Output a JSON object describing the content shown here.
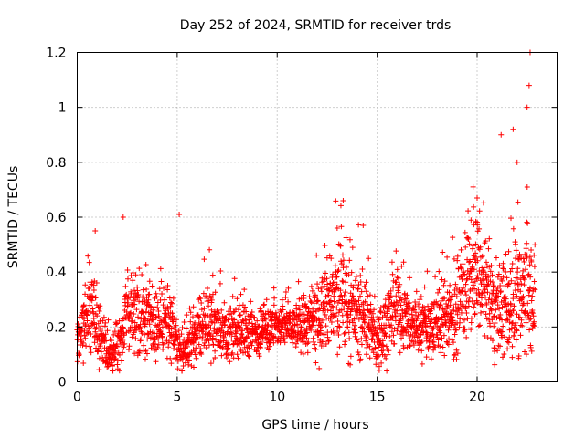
{
  "chart_data": {
    "type": "scatter",
    "title": "Day 252 of 2024, SRMTID for receiver trds",
    "xlabel": "GPS time / hours",
    "ylabel": "SRMTID / TECUs",
    "xlim": [
      0,
      24
    ],
    "ylim": [
      0,
      1.2
    ],
    "xticks": [
      0,
      5,
      10,
      15,
      20
    ],
    "xtick_labels": [
      "0",
      "5",
      "10",
      "15",
      "20"
    ],
    "yticks": [
      0,
      0.2,
      0.4,
      0.6,
      0.8,
      1,
      1.2
    ],
    "ytick_labels": [
      "0",
      "0.2",
      "0.4",
      "0.6",
      "0.8",
      "1",
      "1.2"
    ],
    "grid": true,
    "marker": "+",
    "series": [
      {
        "name": "SRMTID",
        "color": "#ff0000",
        "profile": {
          "hour": [
            0,
            0.3,
            0.6,
            0.9,
            1.2,
            1.5,
            2.0,
            2.5,
            3.0,
            3.5,
            4.0,
            4.5,
            5.0,
            5.3,
            6.0,
            6.5,
            7.0,
            8.0,
            9.0,
            10.0,
            11.0,
            12.0,
            12.5,
            13.0,
            13.5,
            14.0,
            14.5,
            15.0,
            15.5,
            16.0,
            17.0,
            17.8,
            18.5,
            19.0,
            19.5,
            20.0,
            20.5,
            21.0,
            21.5,
            22.0,
            22.5,
            22.9
          ],
          "median": [
            0.14,
            0.2,
            0.28,
            0.24,
            0.15,
            0.11,
            0.12,
            0.25,
            0.22,
            0.25,
            0.2,
            0.22,
            0.12,
            0.1,
            0.18,
            0.22,
            0.2,
            0.18,
            0.18,
            0.2,
            0.2,
            0.22,
            0.28,
            0.3,
            0.27,
            0.25,
            0.22,
            0.15,
            0.22,
            0.26,
            0.2,
            0.2,
            0.25,
            0.25,
            0.35,
            0.4,
            0.3,
            0.25,
            0.28,
            0.3,
            0.35,
            0.3
          ],
          "spread": [
            0.06,
            0.1,
            0.12,
            0.12,
            0.06,
            0.05,
            0.06,
            0.12,
            0.1,
            0.12,
            0.1,
            0.1,
            0.06,
            0.05,
            0.08,
            0.1,
            0.08,
            0.08,
            0.07,
            0.06,
            0.06,
            0.1,
            0.12,
            0.14,
            0.12,
            0.12,
            0.1,
            0.08,
            0.1,
            0.1,
            0.08,
            0.08,
            0.1,
            0.12,
            0.15,
            0.15,
            0.14,
            0.12,
            0.14,
            0.16,
            0.18,
            0.14
          ]
        },
        "peaks": [
          [
            0.9,
            0.55
          ],
          [
            2.3,
            0.6
          ],
          [
            5.1,
            0.61
          ],
          [
            13.0,
            0.56
          ],
          [
            13.3,
            0.66
          ],
          [
            14.3,
            0.57
          ],
          [
            19.8,
            0.71
          ],
          [
            20.0,
            0.67
          ],
          [
            21.2,
            0.9
          ],
          [
            21.8,
            0.92
          ],
          [
            22.0,
            0.8
          ],
          [
            22.5,
            1.0
          ],
          [
            22.6,
            1.08
          ],
          [
            22.65,
            1.2
          ]
        ]
      }
    ]
  }
}
